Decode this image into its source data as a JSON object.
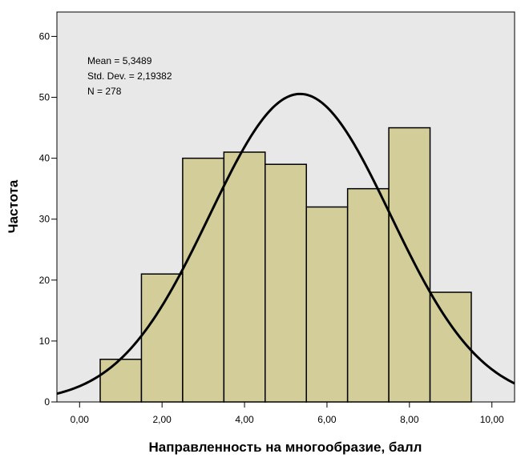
{
  "chart_data": {
    "type": "bar",
    "subtype": "histogram",
    "xlabel": "Направленность на многообразие, балл",
    "ylabel": "Частота",
    "xlim": [
      -0.55,
      10.55
    ],
    "ylim": [
      0,
      64
    ],
    "x_ticks": [
      0,
      2,
      4,
      6,
      8,
      10
    ],
    "x_tick_labels": [
      "0,00",
      "2,00",
      "4,00",
      "6,00",
      "8,00",
      "10,00"
    ],
    "y_ticks": [
      0,
      10,
      20,
      30,
      40,
      50,
      60
    ],
    "y_tick_labels": [
      "0",
      "10",
      "20",
      "30",
      "40",
      "50",
      "60"
    ],
    "bins": [
      {
        "from": 0.5,
        "to": 1.5,
        "value": 7
      },
      {
        "from": 1.5,
        "to": 2.5,
        "value": 21
      },
      {
        "from": 2.5,
        "to": 3.5,
        "value": 40
      },
      {
        "from": 3.5,
        "to": 4.5,
        "value": 41
      },
      {
        "from": 4.5,
        "to": 5.5,
        "value": 39
      },
      {
        "from": 5.5,
        "to": 6.5,
        "value": 32
      },
      {
        "from": 6.5,
        "to": 7.5,
        "value": 35
      },
      {
        "from": 7.5,
        "to": 8.5,
        "value": 45
      },
      {
        "from": 8.5,
        "to": 9.5,
        "value": 18
      }
    ],
    "normal_curve": {
      "mean": 5.3489,
      "std": 2.19382,
      "n": 278,
      "bin_width": 1
    },
    "stats_lines": [
      "Mean = 5,3489",
      "Std. Dev. = 2,19382",
      "N = 278"
    ],
    "grid": false,
    "colors": {
      "bar_fill": "#d3ce99",
      "bar_stroke": "#000000",
      "plot_bg": "#e8e8e8",
      "curve": "#000000"
    }
  }
}
